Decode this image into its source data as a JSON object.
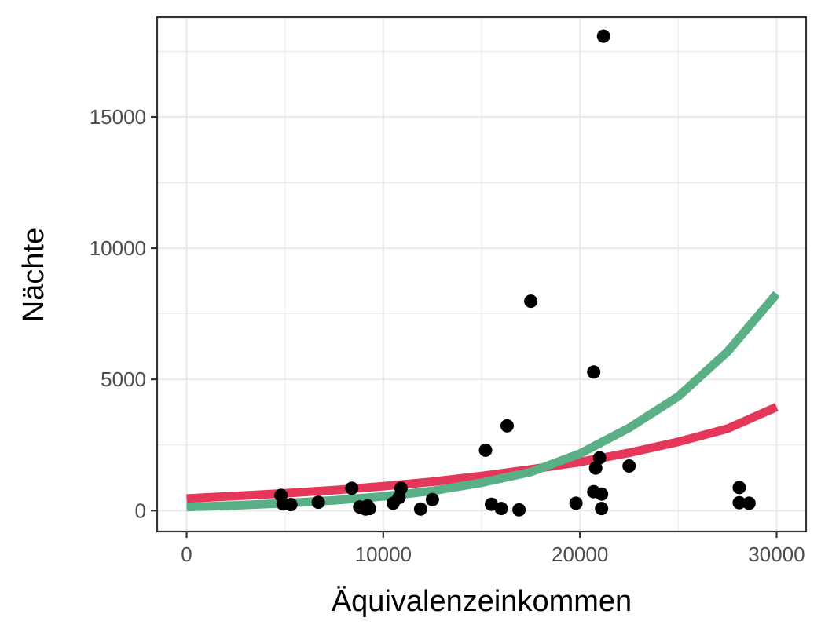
{
  "chart_data": {
    "type": "scatter",
    "xlabel": "Äquivalenzeinkommen",
    "ylabel": "Nächte",
    "xlim": [
      -1500,
      31500
    ],
    "ylim": [
      -800,
      18800
    ],
    "x_ticks": [
      0,
      10000,
      20000,
      30000
    ],
    "x_tick_labels": [
      "0",
      "10000",
      "20000",
      "30000"
    ],
    "y_ticks": [
      0,
      5000,
      10000,
      15000
    ],
    "y_tick_labels": [
      "0",
      "5000",
      "10000",
      "15000"
    ],
    "grid": true,
    "legend": "none",
    "points": [
      {
        "x": 4800,
        "y": 580
      },
      {
        "x": 4900,
        "y": 260
      },
      {
        "x": 5300,
        "y": 230
      },
      {
        "x": 6700,
        "y": 320
      },
      {
        "x": 8400,
        "y": 850
      },
      {
        "x": 8800,
        "y": 140
      },
      {
        "x": 9100,
        "y": 60
      },
      {
        "x": 9300,
        "y": 80
      },
      {
        "x": 9200,
        "y": 180
      },
      {
        "x": 10500,
        "y": 280
      },
      {
        "x": 10800,
        "y": 500
      },
      {
        "x": 10900,
        "y": 850
      },
      {
        "x": 11900,
        "y": 60
      },
      {
        "x": 12500,
        "y": 420
      },
      {
        "x": 15200,
        "y": 2300
      },
      {
        "x": 15500,
        "y": 240
      },
      {
        "x": 16000,
        "y": 80
      },
      {
        "x": 16300,
        "y": 3230
      },
      {
        "x": 16900,
        "y": 30
      },
      {
        "x": 17500,
        "y": 7980
      },
      {
        "x": 19800,
        "y": 280
      },
      {
        "x": 20700,
        "y": 5280
      },
      {
        "x": 20700,
        "y": 720
      },
      {
        "x": 20800,
        "y": 1620
      },
      {
        "x": 21000,
        "y": 2010
      },
      {
        "x": 21100,
        "y": 630
      },
      {
        "x": 21100,
        "y": 80
      },
      {
        "x": 21200,
        "y": 18080
      },
      {
        "x": 22500,
        "y": 1700
      },
      {
        "x": 28100,
        "y": 880
      },
      {
        "x": 28100,
        "y": 300
      },
      {
        "x": 28600,
        "y": 280
      }
    ],
    "series": [
      {
        "type": "line",
        "color": "#e5375a",
        "x": [
          0,
          2500,
          5000,
          7500,
          10000,
          12500,
          15000,
          17500,
          20000,
          22500,
          25000,
          27500,
          30000
        ],
        "y": [
          460,
          560,
          660,
          780,
          930,
          1100,
          1320,
          1570,
          1850,
          2200,
          2620,
          3120,
          3950
        ]
      },
      {
        "type": "line",
        "color": "#5aaf87",
        "x": [
          0,
          2500,
          5000,
          7500,
          10000,
          12500,
          15000,
          17500,
          20000,
          22500,
          25000,
          27500,
          30000
        ],
        "y": [
          140,
          200,
          280,
          390,
          540,
          750,
          1060,
          1470,
          2170,
          3150,
          4350,
          6050,
          8260
        ]
      }
    ]
  }
}
